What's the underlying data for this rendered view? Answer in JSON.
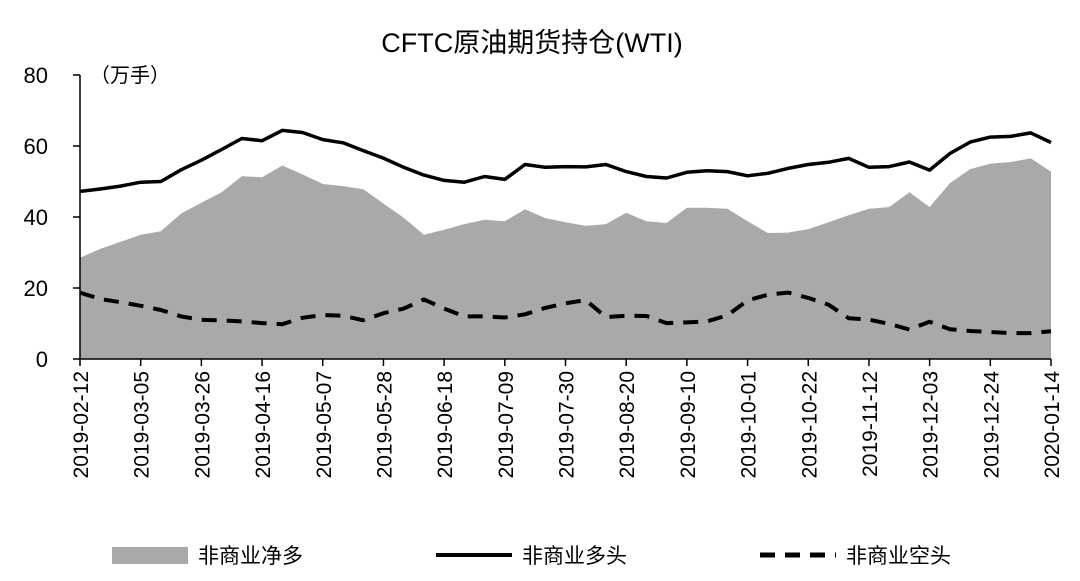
{
  "chart_data": {
    "type": "area",
    "title": "CFTC原油期货持仓(WTI)",
    "unit_label": "（万手）",
    "xlabel": "",
    "ylabel": "",
    "ylim": [
      0,
      80
    ],
    "yticks": [
      0,
      20,
      40,
      60,
      80
    ],
    "grid": false,
    "legend_position": "bottom",
    "x": [
      "2019-02-12",
      "2019-02-19",
      "2019-02-26",
      "2019-03-05",
      "2019-03-12",
      "2019-03-19",
      "2019-03-26",
      "2019-04-02",
      "2019-04-09",
      "2019-04-16",
      "2019-04-23",
      "2019-04-30",
      "2019-05-07",
      "2019-05-14",
      "2019-05-21",
      "2019-05-28",
      "2019-06-04",
      "2019-06-11",
      "2019-06-18",
      "2019-06-25",
      "2019-07-02",
      "2019-07-09",
      "2019-07-16",
      "2019-07-23",
      "2019-07-30",
      "2019-08-06",
      "2019-08-13",
      "2019-08-20",
      "2019-08-27",
      "2019-09-03",
      "2019-09-10",
      "2019-09-17",
      "2019-09-24",
      "2019-10-01",
      "2019-10-08",
      "2019-10-15",
      "2019-10-22",
      "2019-10-29",
      "2019-11-05",
      "2019-11-12",
      "2019-11-19",
      "2019-11-26",
      "2019-12-03",
      "2019-12-10",
      "2019-12-17",
      "2019-12-24",
      "2019-12-31",
      "2020-01-07",
      "2020-01-14"
    ],
    "x_tick_labels": [
      "2019-02-12",
      "2019-03-05",
      "2019-03-26",
      "2019-04-16",
      "2019-05-07",
      "2019-05-28",
      "2019-06-18",
      "2019-07-09",
      "2019-07-30",
      "2019-08-20",
      "2019-09-10",
      "2019-10-01",
      "2019-10-22",
      "2019-11-12",
      "2019-12-03",
      "2019-12-24",
      "2020-01-14"
    ],
    "series": [
      {
        "name": "非商业净多",
        "style": "area",
        "color": "#a9a9a9",
        "values": [
          28.5,
          31,
          33,
          35,
          36,
          41,
          44,
          47,
          51.5,
          51.2,
          54.5,
          52,
          49.3,
          48.7,
          47.8,
          43.8,
          39.8,
          35,
          36.4,
          38,
          39.2,
          38.8,
          42.2,
          39.7,
          38.5,
          37.5,
          38,
          41.2,
          38.8,
          38.3,
          42.6,
          42.6,
          42.3,
          38.8,
          35.5,
          35.6,
          36.6,
          38.5,
          40.5,
          42.3,
          42.8,
          47,
          42.8,
          49.5,
          53.5,
          55,
          55.5,
          56.5,
          52.8
        ]
      },
      {
        "name": "非商业多头",
        "style": "solid",
        "color": "#000000",
        "values": [
          47.2,
          47.9,
          48.7,
          49.8,
          50,
          53.3,
          56,
          59,
          62.1,
          61.5,
          64.4,
          63.8,
          61.8,
          60.9,
          58.7,
          56.6,
          54,
          51.8,
          50.3,
          49.8,
          51.4,
          50.6,
          54.8,
          54,
          54.2,
          54.1,
          54.8,
          52.8,
          51.4,
          51,
          52.6,
          53,
          52.8,
          51.6,
          52.3,
          53.7,
          54.8,
          55.4,
          56.5,
          54,
          54.2,
          55.5,
          53.2,
          57.9,
          61.1,
          62.5,
          62.7,
          63.7,
          61
        ]
      },
      {
        "name": "非商业空头",
        "style": "dashed",
        "color": "#000000",
        "values": [
          18.7,
          16.9,
          16,
          15,
          13.8,
          12,
          11,
          10.9,
          10.6,
          10.1,
          9.8,
          11.6,
          12.4,
          12.2,
          10.9,
          12.9,
          14.2,
          16.8,
          14.2,
          12,
          12,
          11.7,
          12.6,
          14.4,
          15.7,
          16.6,
          11.8,
          12.2,
          12.1,
          10.1,
          10.3,
          10.6,
          12.3,
          16.5,
          18.1,
          18.7,
          17.2,
          15.3,
          11.5,
          11.1,
          9.9,
          8.3,
          10.5,
          8.4,
          7.9,
          7.6,
          7.3,
          7.3,
          7.8
        ]
      }
    ]
  }
}
